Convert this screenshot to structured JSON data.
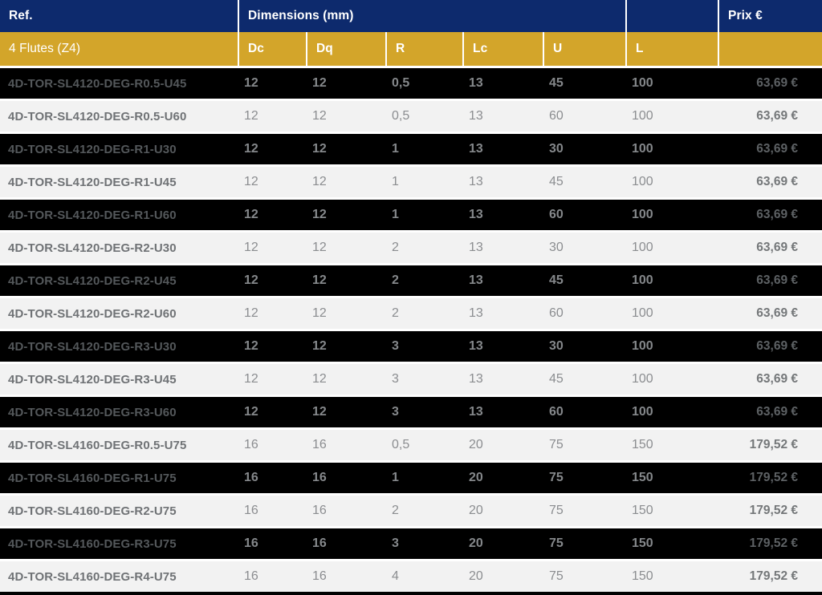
{
  "table": {
    "header": {
      "ref": "Ref.",
      "dimensions": "Dimensions (mm)",
      "l_group": "",
      "prix": "Prix €"
    },
    "subheader": {
      "flutes": "4 Flutes (Z4)",
      "cols": [
        "Dc",
        "Dq",
        "R",
        "Lc",
        "U",
        "L"
      ],
      "price_col": ""
    },
    "rows": [
      {
        "ref": "4D-TOR-SL4120-DEG-R0.5-U45",
        "dc": "12",
        "dq": "12",
        "r": "0,5",
        "lc": "13",
        "u": "45",
        "l": "100",
        "prix": "63,69 €"
      },
      {
        "ref": "4D-TOR-SL4120-DEG-R0.5-U60",
        "dc": "12",
        "dq": "12",
        "r": "0,5",
        "lc": "13",
        "u": "60",
        "l": "100",
        "prix": "63,69 €"
      },
      {
        "ref": "4D-TOR-SL4120-DEG-R1-U30",
        "dc": "12",
        "dq": "12",
        "r": "1",
        "lc": "13",
        "u": "30",
        "l": "100",
        "prix": "63,69 €"
      },
      {
        "ref": "4D-TOR-SL4120-DEG-R1-U45",
        "dc": "12",
        "dq": "12",
        "r": "1",
        "lc": "13",
        "u": "45",
        "l": "100",
        "prix": "63,69 €"
      },
      {
        "ref": "4D-TOR-SL4120-DEG-R1-U60",
        "dc": "12",
        "dq": "12",
        "r": "1",
        "lc": "13",
        "u": "60",
        "l": "100",
        "prix": "63,69 €"
      },
      {
        "ref": "4D-TOR-SL4120-DEG-R2-U30",
        "dc": "12",
        "dq": "12",
        "r": "2",
        "lc": "13",
        "u": "30",
        "l": "100",
        "prix": "63,69 €"
      },
      {
        "ref": "4D-TOR-SL4120-DEG-R2-U45",
        "dc": "12",
        "dq": "12",
        "r": "2",
        "lc": "13",
        "u": "45",
        "l": "100",
        "prix": "63,69 €"
      },
      {
        "ref": "4D-TOR-SL4120-DEG-R2-U60",
        "dc": "12",
        "dq": "12",
        "r": "2",
        "lc": "13",
        "u": "60",
        "l": "100",
        "prix": "63,69 €"
      },
      {
        "ref": "4D-TOR-SL4120-DEG-R3-U30",
        "dc": "12",
        "dq": "12",
        "r": "3",
        "lc": "13",
        "u": "30",
        "l": "100",
        "prix": "63,69 €"
      },
      {
        "ref": "4D-TOR-SL4120-DEG-R3-U45",
        "dc": "12",
        "dq": "12",
        "r": "3",
        "lc": "13",
        "u": "45",
        "l": "100",
        "prix": "63,69 €"
      },
      {
        "ref": "4D-TOR-SL4120-DEG-R3-U60",
        "dc": "12",
        "dq": "12",
        "r": "3",
        "lc": "13",
        "u": "60",
        "l": "100",
        "prix": "63,69 €"
      },
      {
        "ref": "4D-TOR-SL4160-DEG-R0.5-U75",
        "dc": "16",
        "dq": "16",
        "r": "0,5",
        "lc": "20",
        "u": "75",
        "l": "150",
        "prix": "179,52 €"
      },
      {
        "ref": "4D-TOR-SL4160-DEG-R1-U75",
        "dc": "16",
        "dq": "16",
        "r": "1",
        "lc": "20",
        "u": "75",
        "l": "150",
        "prix": "179,52 €"
      },
      {
        "ref": "4D-TOR-SL4160-DEG-R2-U75",
        "dc": "16",
        "dq": "16",
        "r": "2",
        "lc": "20",
        "u": "75",
        "l": "150",
        "prix": "179,52 €"
      },
      {
        "ref": "4D-TOR-SL4160-DEG-R3-U75",
        "dc": "16",
        "dq": "16",
        "r": "3",
        "lc": "20",
        "u": "75",
        "l": "150",
        "prix": "179,52 €"
      },
      {
        "ref": "4D-TOR-SL4160-DEG-R4-U75",
        "dc": "16",
        "dq": "16",
        "r": "4",
        "lc": "20",
        "u": "75",
        "l": "150",
        "prix": "179,52 €"
      }
    ]
  },
  "colors": {
    "header_blue": "#0d2a6d",
    "header_gold": "#d3a52a",
    "row_dark": "#000000",
    "row_light": "#f2f2f2",
    "divider_white": "#ffffff"
  }
}
